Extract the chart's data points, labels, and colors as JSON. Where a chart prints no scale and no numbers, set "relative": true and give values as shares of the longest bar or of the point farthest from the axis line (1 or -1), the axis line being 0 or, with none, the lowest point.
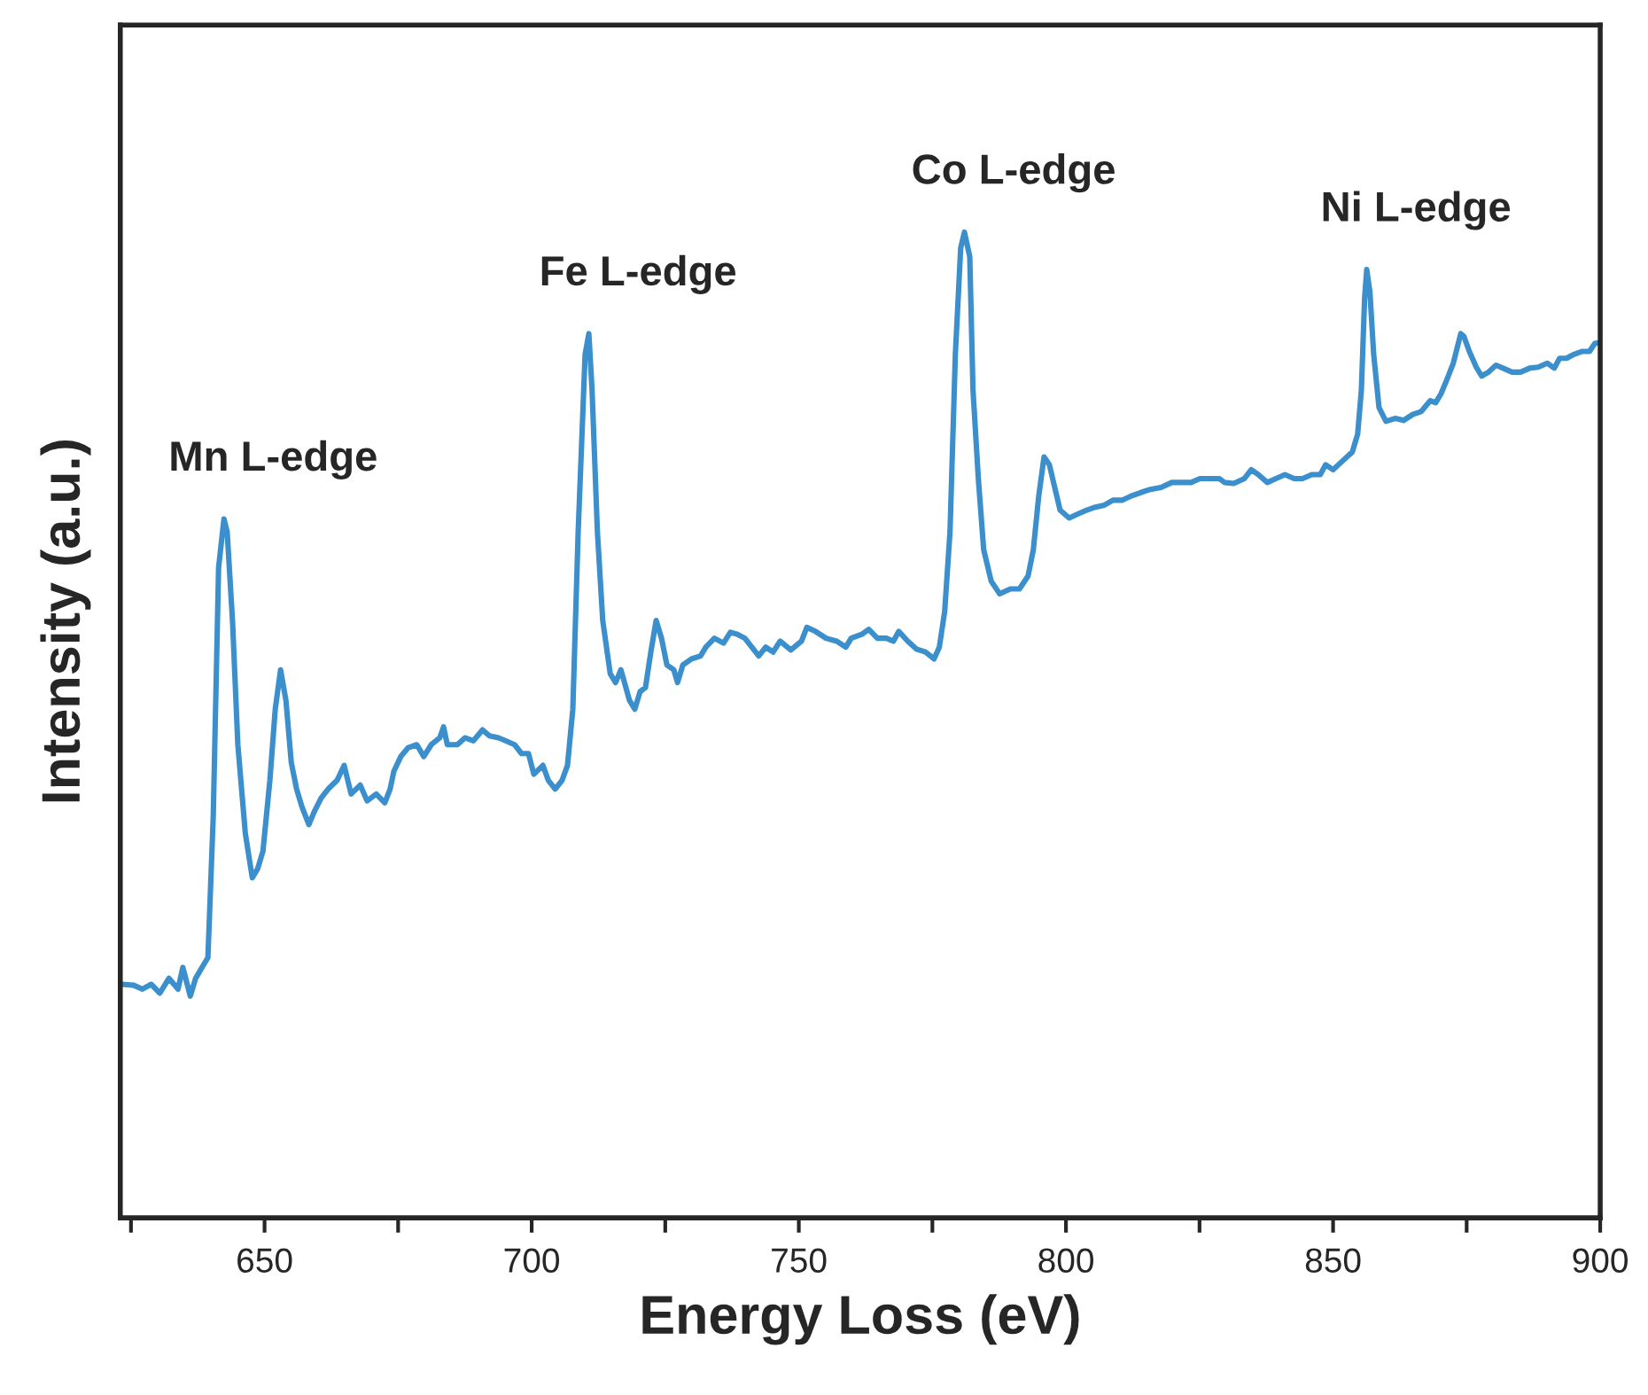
{
  "chart_data": {
    "type": "line",
    "relative": true,
    "xlabel": "Energy Loss (eV)",
    "ylabel": "Intensity (a.u.)",
    "xlim": [
      623,
      900
    ],
    "xticks": [
      {
        "value": 625,
        "label": null
      },
      650,
      {
        "value": 675,
        "label": null
      },
      700,
      {
        "value": 725,
        "label": null
      },
      750,
      {
        "value": 775,
        "label": null
      },
      800,
      {
        "value": 825,
        "label": null
      },
      850,
      {
        "value": 875,
        "label": null
      },
      900
    ],
    "tick_labels": "x",
    "grid": false,
    "marker": "none",
    "line_style": "solid",
    "annotations": [
      {
        "text": "Mn L-edge",
        "x": 642.4,
        "y": 0.709
      },
      {
        "text": "Fe L-edge",
        "x": 710.7,
        "y": 0.897
      },
      {
        "text": "Co L-edge",
        "x": 781.0,
        "y": 1.0
      },
      {
        "text": "Ni L-edge",
        "x": 856.3,
        "y": 0.962
      }
    ],
    "series": [
      {
        "color": "#3a8fcc",
        "x": [
          623.1,
          625.5,
          627.1,
          628.8,
          630.4,
          632.1,
          633.8,
          634.7,
          636.1,
          637.1,
          638.4,
          639.4,
          640.4,
          641.4,
          642.4,
          643.0,
          644.0,
          645.0,
          646.4,
          647.7,
          648.7,
          649.7,
          651.0,
          652.0,
          653.0,
          654.0,
          655.0,
          656.0,
          657.0,
          658.3,
          659.3,
          660.6,
          661.9,
          663.6,
          664.9,
          666.2,
          667.9,
          669.2,
          670.9,
          672.5,
          673.5,
          674.2,
          675.5,
          676.9,
          678.5,
          679.8,
          681.2,
          682.8,
          683.5,
          684.2,
          686.1,
          687.5,
          689.1,
          690.8,
          692.1,
          693.8,
          695.1,
          696.8,
          698.1,
          699.4,
          700.4,
          702.1,
          703.1,
          704.4,
          705.7,
          706.7,
          707.7,
          708.7,
          710.0,
          710.7,
          711.3,
          712.3,
          713.3,
          714.7,
          715.7,
          716.7,
          718.3,
          719.3,
          720.3,
          721.3,
          722.3,
          723.3,
          724.3,
          725.3,
          726.6,
          727.3,
          728.3,
          729.9,
          731.6,
          732.6,
          734.2,
          735.9,
          737.2,
          738.5,
          739.9,
          741.2,
          742.5,
          743.8,
          745.2,
          746.5,
          748.5,
          750.5,
          751.5,
          753.1,
          755.1,
          757.1,
          758.8,
          759.8,
          761.8,
          763.1,
          764.7,
          766.4,
          767.7,
          768.7,
          770.4,
          772.0,
          773.7,
          775.3,
          776.3,
          777.3,
          778.3,
          779.3,
          780.3,
          781.0,
          782.0,
          782.6,
          783.6,
          784.6,
          786.0,
          787.6,
          789.6,
          791.3,
          792.9,
          793.9,
          794.9,
          795.9,
          796.9,
          797.9,
          798.9,
          800.6,
          802.2,
          803.9,
          805.5,
          807.2,
          808.8,
          810.5,
          812.1,
          814.1,
          815.8,
          817.8,
          819.8,
          821.8,
          823.4,
          825.1,
          827.1,
          828.7,
          829.7,
          831.4,
          833.4,
          834.7,
          836.0,
          837.7,
          839.3,
          841.0,
          842.7,
          844.3,
          846.0,
          847.6,
          848.6,
          850.0,
          851.0,
          852.6,
          853.6,
          854.6,
          855.3,
          855.9,
          856.3,
          856.9,
          857.6,
          858.6,
          859.9,
          861.6,
          863.2,
          864.9,
          866.5,
          868.2,
          869.2,
          870.2,
          871.2,
          872.5,
          873.9,
          874.5,
          875.5,
          876.8,
          877.8,
          879.1,
          880.5,
          881.8,
          883.5,
          885.1,
          886.8,
          888.4,
          890.1,
          891.4,
          892.4,
          893.7,
          895.1,
          896.7,
          898.0,
          899.0,
          900.0
        ],
        "values": [
          0.237,
          0.236,
          0.232,
          0.237,
          0.228,
          0.243,
          0.232,
          0.254,
          0.225,
          0.243,
          0.255,
          0.264,
          0.408,
          0.66,
          0.709,
          0.696,
          0.606,
          0.48,
          0.39,
          0.345,
          0.354,
          0.372,
          0.444,
          0.516,
          0.556,
          0.525,
          0.462,
          0.435,
          0.417,
          0.399,
          0.412,
          0.426,
          0.435,
          0.444,
          0.459,
          0.43,
          0.439,
          0.423,
          0.43,
          0.421,
          0.435,
          0.453,
          0.468,
          0.477,
          0.48,
          0.468,
          0.48,
          0.487,
          0.498,
          0.48,
          0.48,
          0.487,
          0.484,
          0.495,
          0.489,
          0.487,
          0.484,
          0.48,
          0.471,
          0.471,
          0.45,
          0.459,
          0.444,
          0.435,
          0.444,
          0.459,
          0.516,
          0.696,
          0.876,
          0.897,
          0.84,
          0.696,
          0.606,
          0.552,
          0.543,
          0.556,
          0.525,
          0.516,
          0.534,
          0.538,
          0.574,
          0.606,
          0.588,
          0.561,
          0.556,
          0.543,
          0.561,
          0.567,
          0.57,
          0.579,
          0.588,
          0.583,
          0.594,
          0.592,
          0.588,
          0.579,
          0.57,
          0.579,
          0.574,
          0.585,
          0.576,
          0.585,
          0.599,
          0.595,
          0.588,
          0.585,
          0.579,
          0.588,
          0.592,
          0.597,
          0.588,
          0.588,
          0.585,
          0.595,
          0.585,
          0.577,
          0.574,
          0.567,
          0.579,
          0.615,
          0.696,
          0.876,
          0.984,
          1.0,
          0.975,
          0.84,
          0.75,
          0.678,
          0.646,
          0.633,
          0.638,
          0.638,
          0.651,
          0.678,
          0.732,
          0.772,
          0.764,
          0.741,
          0.718,
          0.71,
          0.714,
          0.718,
          0.721,
          0.723,
          0.728,
          0.728,
          0.732,
          0.736,
          0.739,
          0.741,
          0.746,
          0.746,
          0.746,
          0.75,
          0.75,
          0.75,
          0.746,
          0.745,
          0.75,
          0.759,
          0.754,
          0.746,
          0.75,
          0.754,
          0.75,
          0.75,
          0.754,
          0.754,
          0.764,
          0.759,
          0.764,
          0.772,
          0.777,
          0.795,
          0.84,
          0.933,
          0.962,
          0.939,
          0.876,
          0.822,
          0.808,
          0.811,
          0.809,
          0.815,
          0.818,
          0.829,
          0.827,
          0.836,
          0.849,
          0.867,
          0.897,
          0.894,
          0.879,
          0.863,
          0.854,
          0.858,
          0.865,
          0.862,
          0.858,
          0.858,
          0.862,
          0.863,
          0.867,
          0.862,
          0.872,
          0.872,
          0.876,
          0.879,
          0.879,
          0.887,
          0.888
        ]
      }
    ]
  }
}
